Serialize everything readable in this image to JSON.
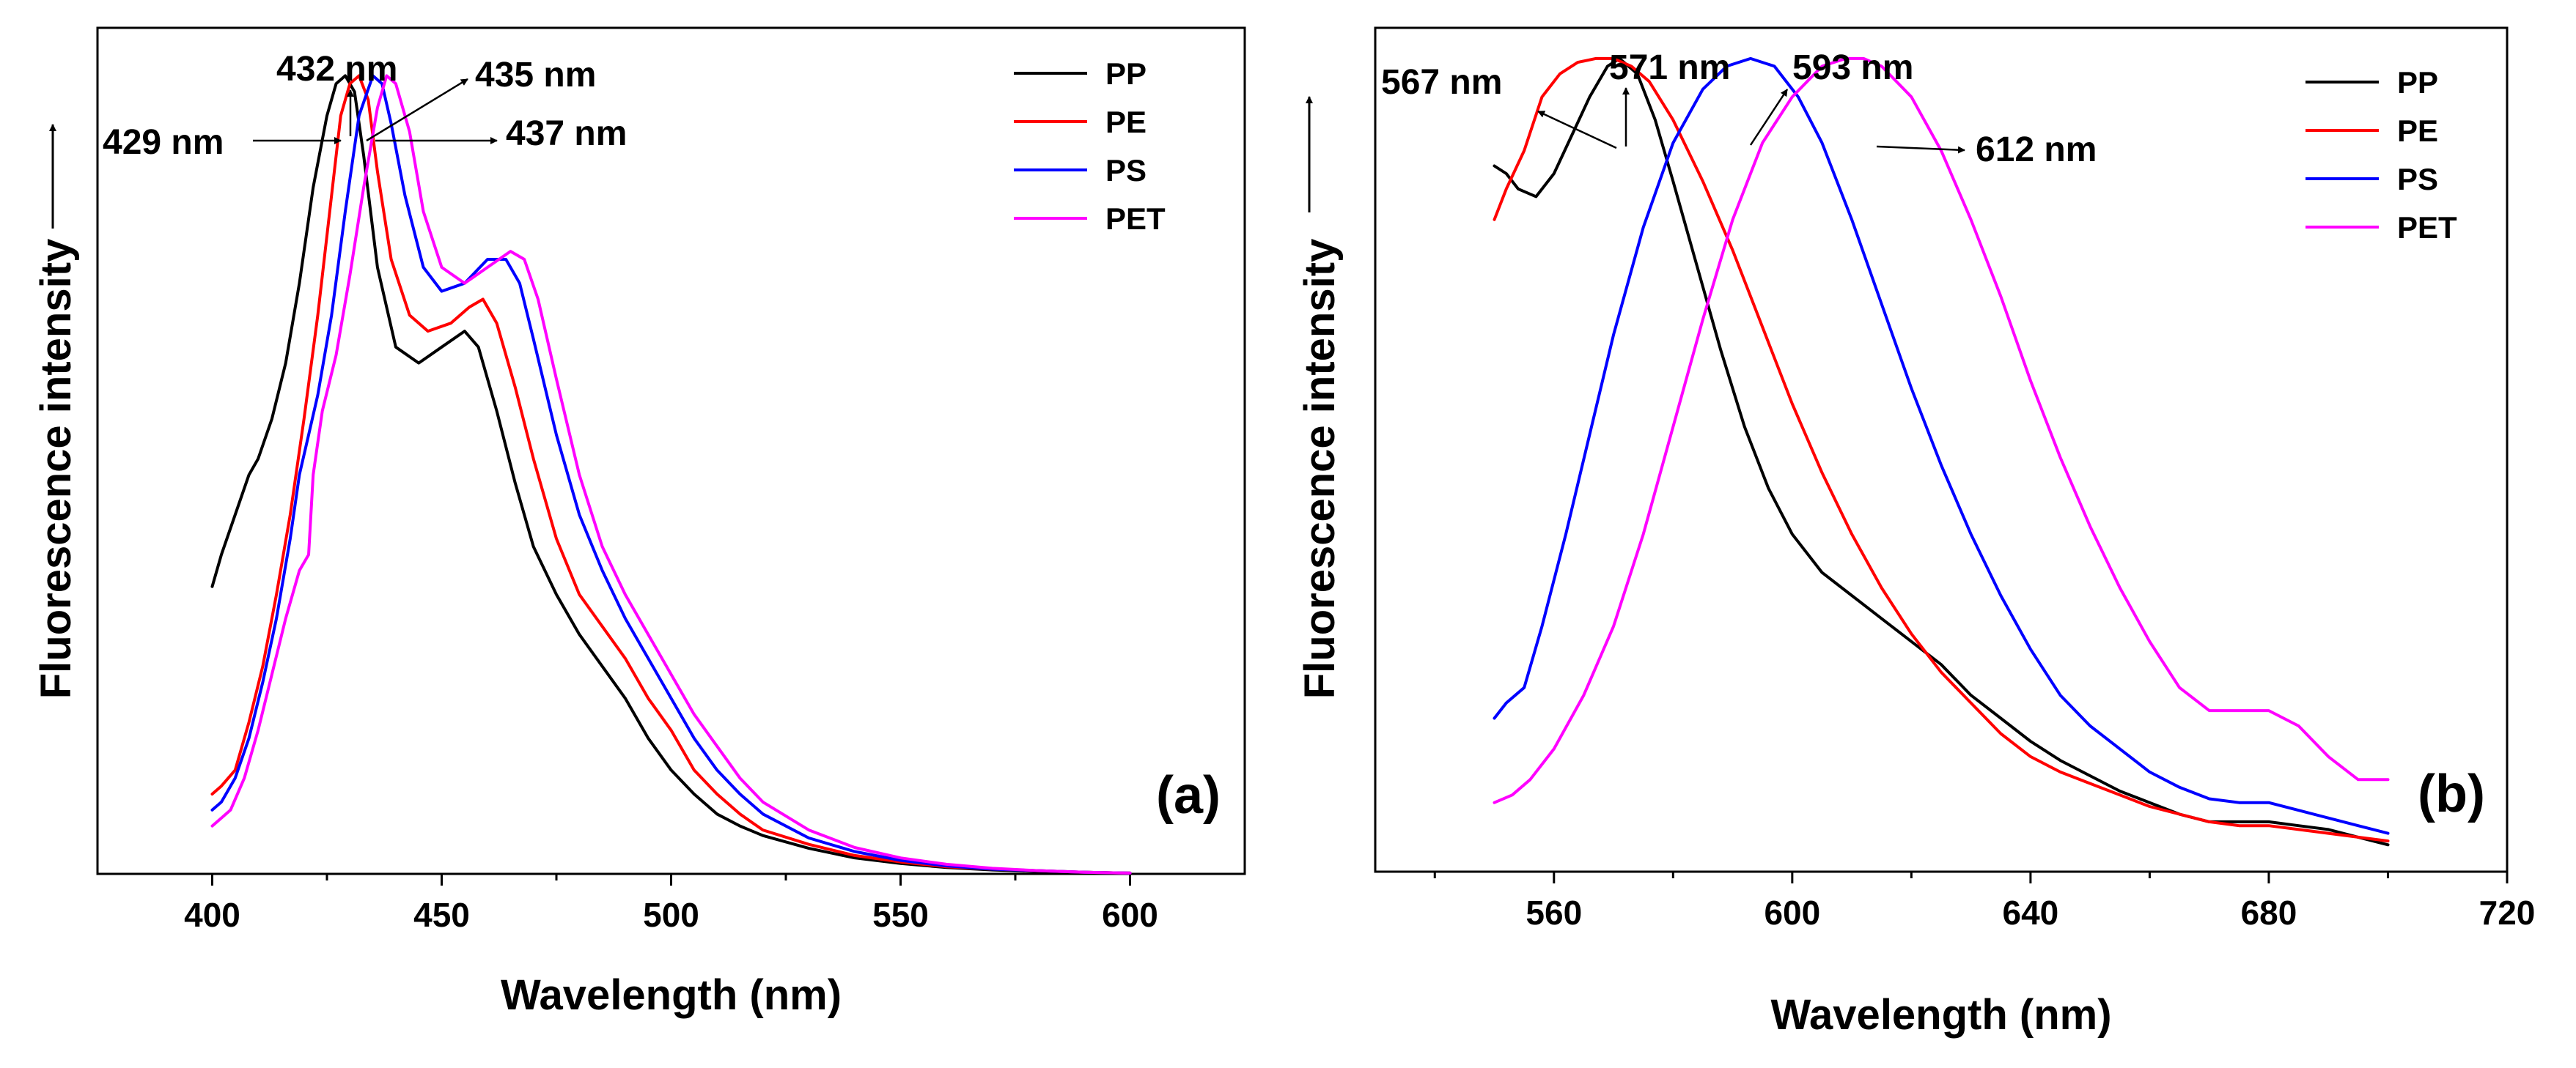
{
  "chart_data": [
    {
      "type": "line",
      "panel_label": "(a)",
      "xlabel": "Wavelength (nm)",
      "ylabel": "Fluorescence intensity",
      "xlim": [
        375,
        625
      ],
      "ylim": [
        0,
        1.06
      ],
      "xticks": [
        400,
        450,
        500,
        550,
        600
      ],
      "legend_position": "top-right",
      "grid": false,
      "y_tick_labels": false,
      "series": [
        {
          "name": "PP",
          "color": "#000000",
          "x": [
            400,
            402,
            405,
            408,
            410,
            413,
            416,
            419,
            422,
            425,
            427,
            429,
            431,
            433,
            436,
            440,
            445,
            450,
            455,
            458,
            462,
            466,
            470,
            475,
            480,
            485,
            490,
            495,
            500,
            505,
            510,
            515,
            520,
            530,
            540,
            550,
            560,
            570,
            580,
            590,
            600
          ],
          "y": [
            0.36,
            0.4,
            0.45,
            0.5,
            0.52,
            0.57,
            0.64,
            0.74,
            0.86,
            0.95,
            0.99,
            1.0,
            0.98,
            0.9,
            0.76,
            0.66,
            0.64,
            0.66,
            0.68,
            0.66,
            0.58,
            0.49,
            0.41,
            0.35,
            0.3,
            0.26,
            0.22,
            0.17,
            0.13,
            0.1,
            0.075,
            0.06,
            0.048,
            0.032,
            0.02,
            0.013,
            0.008,
            0.005,
            0.003,
            0.002,
            0.001
          ]
        },
        {
          "name": "PE",
          "color": "#ff0000",
          "x": [
            400,
            402,
            405,
            408,
            411,
            414,
            417,
            420,
            423,
            426,
            428,
            430,
            432,
            434,
            436,
            439,
            443,
            447,
            452,
            456,
            459,
            462,
            466,
            470,
            475,
            480,
            485,
            490,
            495,
            500,
            505,
            510,
            515,
            520,
            530,
            540,
            550,
            560,
            570,
            580,
            590,
            600
          ],
          "y": [
            0.1,
            0.11,
            0.13,
            0.19,
            0.26,
            0.35,
            0.45,
            0.57,
            0.7,
            0.85,
            0.95,
            0.99,
            1.0,
            0.97,
            0.88,
            0.77,
            0.7,
            0.68,
            0.69,
            0.71,
            0.72,
            0.69,
            0.61,
            0.52,
            0.42,
            0.35,
            0.31,
            0.27,
            0.22,
            0.18,
            0.13,
            0.1,
            0.075,
            0.055,
            0.037,
            0.023,
            0.015,
            0.009,
            0.006,
            0.004,
            0.002,
            0.001
          ]
        },
        {
          "name": "PS",
          "color": "#0000ff",
          "x": [
            400,
            402,
            405,
            408,
            411,
            414,
            417,
            419,
            421,
            423,
            426,
            429,
            432,
            435,
            437,
            439,
            442,
            446,
            450,
            455,
            460,
            464,
            467,
            470,
            475,
            480,
            485,
            490,
            495,
            500,
            505,
            510,
            515,
            520,
            530,
            540,
            550,
            560,
            570,
            580,
            590,
            600
          ],
          "y": [
            0.08,
            0.09,
            0.12,
            0.17,
            0.24,
            0.32,
            0.42,
            0.5,
            0.55,
            0.6,
            0.7,
            0.83,
            0.95,
            1.0,
            0.99,
            0.94,
            0.85,
            0.76,
            0.73,
            0.74,
            0.77,
            0.77,
            0.74,
            0.67,
            0.55,
            0.45,
            0.38,
            0.32,
            0.27,
            0.22,
            0.17,
            0.13,
            0.1,
            0.075,
            0.045,
            0.028,
            0.017,
            0.01,
            0.006,
            0.004,
            0.002,
            0.001
          ]
        },
        {
          "name": "PET",
          "color": "#ff00ff",
          "x": [
            400,
            402,
            404,
            407,
            410,
            413,
            416,
            419,
            421,
            422,
            424,
            427,
            430,
            433,
            436,
            438,
            440,
            443,
            446,
            450,
            455,
            460,
            465,
            468,
            471,
            475,
            480,
            485,
            490,
            495,
            500,
            505,
            510,
            515,
            520,
            530,
            540,
            550,
            560,
            570,
            580,
            590,
            600
          ],
          "y": [
            0.06,
            0.07,
            0.08,
            0.12,
            0.18,
            0.25,
            0.32,
            0.38,
            0.4,
            0.5,
            0.58,
            0.65,
            0.75,
            0.86,
            0.96,
            1.0,
            0.99,
            0.93,
            0.83,
            0.76,
            0.74,
            0.76,
            0.78,
            0.77,
            0.72,
            0.62,
            0.5,
            0.41,
            0.35,
            0.3,
            0.25,
            0.2,
            0.16,
            0.12,
            0.09,
            0.055,
            0.033,
            0.02,
            0.012,
            0.007,
            0.004,
            0.002,
            0.001
          ]
        }
      ],
      "legend": [
        "PP",
        "PE",
        "PS",
        "PET"
      ],
      "annotations": [
        {
          "text": "429 nm",
          "x": 429,
          "y": 1.0,
          "arrow": "left"
        },
        {
          "text": "432 nm",
          "x": 432,
          "y": 1.0,
          "arrow": "up"
        },
        {
          "text": "435 nm",
          "x": 435,
          "y": 1.0,
          "arrow": "upper-right"
        },
        {
          "text": "437 nm",
          "x": 437,
          "y": 1.0,
          "arrow": "right"
        }
      ]
    },
    {
      "type": "line",
      "panel_label": "(b)",
      "xlabel": "Wavelength (nm)",
      "ylabel": "Fluorescence intensity",
      "xlim": [
        530,
        720
      ],
      "ylim": [
        -0.06,
        1.04
      ],
      "xticks": [
        560,
        600,
        640,
        680,
        720
      ],
      "legend_position": "top-right",
      "grid": false,
      "y_tick_labels": false,
      "series": [
        {
          "name": "PP",
          "color": "#000000",
          "x": [
            550,
            552,
            554,
            557,
            560,
            563,
            566,
            569,
            571,
            574,
            577,
            580,
            584,
            588,
            592,
            596,
            600,
            605,
            610,
            615,
            620,
            625,
            630,
            635,
            640,
            645,
            650,
            655,
            660,
            665,
            670,
            675,
            680,
            685,
            690,
            695,
            700
          ],
          "y": [
            0.86,
            0.85,
            0.83,
            0.82,
            0.85,
            0.9,
            0.95,
            0.99,
            1.0,
            0.98,
            0.92,
            0.84,
            0.73,
            0.62,
            0.52,
            0.44,
            0.38,
            0.33,
            0.3,
            0.27,
            0.24,
            0.21,
            0.17,
            0.14,
            0.11,
            0.085,
            0.065,
            0.045,
            0.03,
            0.015,
            0.005,
            0.005,
            0.005,
            0.0,
            -0.005,
            -0.015,
            -0.025
          ]
        },
        {
          "name": "PE",
          "color": "#ff0000",
          "x": [
            550,
            552,
            555,
            558,
            561,
            564,
            567,
            570,
            573,
            576,
            580,
            585,
            590,
            595,
            600,
            605,
            610,
            615,
            620,
            625,
            630,
            635,
            640,
            645,
            650,
            655,
            660,
            665,
            670,
            675,
            680,
            685,
            690,
            695,
            700
          ],
          "y": [
            0.79,
            0.83,
            0.88,
            0.95,
            0.98,
            0.995,
            1.0,
            1.0,
            0.99,
            0.97,
            0.92,
            0.84,
            0.75,
            0.65,
            0.55,
            0.46,
            0.38,
            0.31,
            0.25,
            0.2,
            0.16,
            0.12,
            0.09,
            0.07,
            0.055,
            0.04,
            0.025,
            0.015,
            0.005,
            0.0,
            0.0,
            -0.005,
            -0.01,
            -0.015,
            -0.02
          ]
        },
        {
          "name": "PS",
          "color": "#0000ff",
          "x": [
            550,
            552,
            555,
            558,
            562,
            566,
            570,
            575,
            580,
            585,
            589,
            593,
            597,
            601,
            605,
            610,
            615,
            620,
            625,
            630,
            635,
            640,
            645,
            650,
            655,
            660,
            665,
            670,
            675,
            680,
            685,
            690,
            695,
            700
          ],
          "y": [
            0.14,
            0.16,
            0.18,
            0.26,
            0.38,
            0.51,
            0.64,
            0.78,
            0.89,
            0.96,
            0.99,
            1.0,
            0.99,
            0.95,
            0.89,
            0.79,
            0.68,
            0.57,
            0.47,
            0.38,
            0.3,
            0.23,
            0.17,
            0.13,
            0.1,
            0.07,
            0.05,
            0.035,
            0.03,
            0.03,
            0.02,
            0.01,
            0.0,
            -0.01
          ]
        },
        {
          "name": "PET",
          "color": "#ff00ff",
          "x": [
            550,
            553,
            556,
            560,
            565,
            570,
            575,
            580,
            585,
            590,
            595,
            600,
            605,
            609,
            612,
            615,
            620,
            625,
            630,
            635,
            640,
            645,
            650,
            655,
            660,
            665,
            670,
            675,
            680,
            685,
            690,
            695,
            700
          ],
          "y": [
            0.03,
            0.04,
            0.06,
            0.1,
            0.17,
            0.26,
            0.38,
            0.52,
            0.66,
            0.79,
            0.89,
            0.95,
            0.99,
            1.0,
            1.0,
            0.99,
            0.95,
            0.88,
            0.79,
            0.69,
            0.58,
            0.48,
            0.39,
            0.31,
            0.24,
            0.18,
            0.15,
            0.15,
            0.15,
            0.13,
            0.09,
            0.06,
            0.06
          ]
        }
      ],
      "legend": [
        "PP",
        "PE",
        "PS",
        "PET"
      ],
      "annotations": [
        {
          "text": "567 nm",
          "x": 567,
          "y": 1.0,
          "arrow": "upper-left"
        },
        {
          "text": "571 nm",
          "x": 571,
          "y": 1.0,
          "arrow": "up"
        },
        {
          "text": "593 nm",
          "x": 593,
          "y": 1.0,
          "arrow": "upper-right"
        },
        {
          "text": "612 nm",
          "x": 612,
          "y": 1.0,
          "arrow": "right"
        }
      ]
    }
  ]
}
